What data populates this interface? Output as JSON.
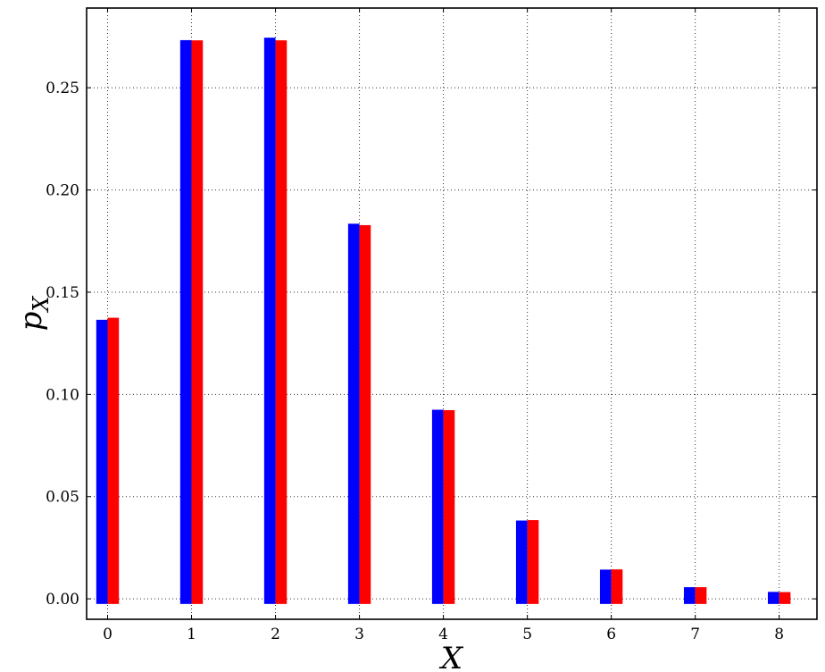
{
  "chart_data": {
    "type": "bar",
    "title": "",
    "xlabel": "X",
    "ylabel": "p",
    "ylabel_subscript": "X",
    "x": [
      0,
      1,
      2,
      3,
      4,
      5,
      6,
      7,
      8
    ],
    "x_tick_labels": [
      "0",
      "1",
      "2",
      "3",
      "4",
      "5",
      "6",
      "7",
      "8"
    ],
    "y_ticks": [
      0.0,
      0.05,
      0.1,
      0.15,
      0.2,
      0.25
    ],
    "y_tick_labels": [
      "0.00",
      "0.05",
      "0.10",
      "0.15",
      "0.20",
      "0.25"
    ],
    "xlim": [
      -0.25,
      8.45
    ],
    "ylim": [
      -0.01,
      0.289
    ],
    "bar_bottom": -0.0025,
    "grid": true,
    "legend": "none",
    "series": [
      {
        "color": "#0000ff",
        "values": [
          0.1365,
          0.2733,
          0.2745,
          0.1835,
          0.0925,
          0.0383,
          0.0143,
          0.0057,
          0.0034
        ]
      },
      {
        "color": "#ff0000",
        "values": [
          0.1375,
          0.2732,
          0.2732,
          0.1828,
          0.0923,
          0.0385,
          0.0144,
          0.0057,
          0.0033
        ]
      }
    ]
  }
}
